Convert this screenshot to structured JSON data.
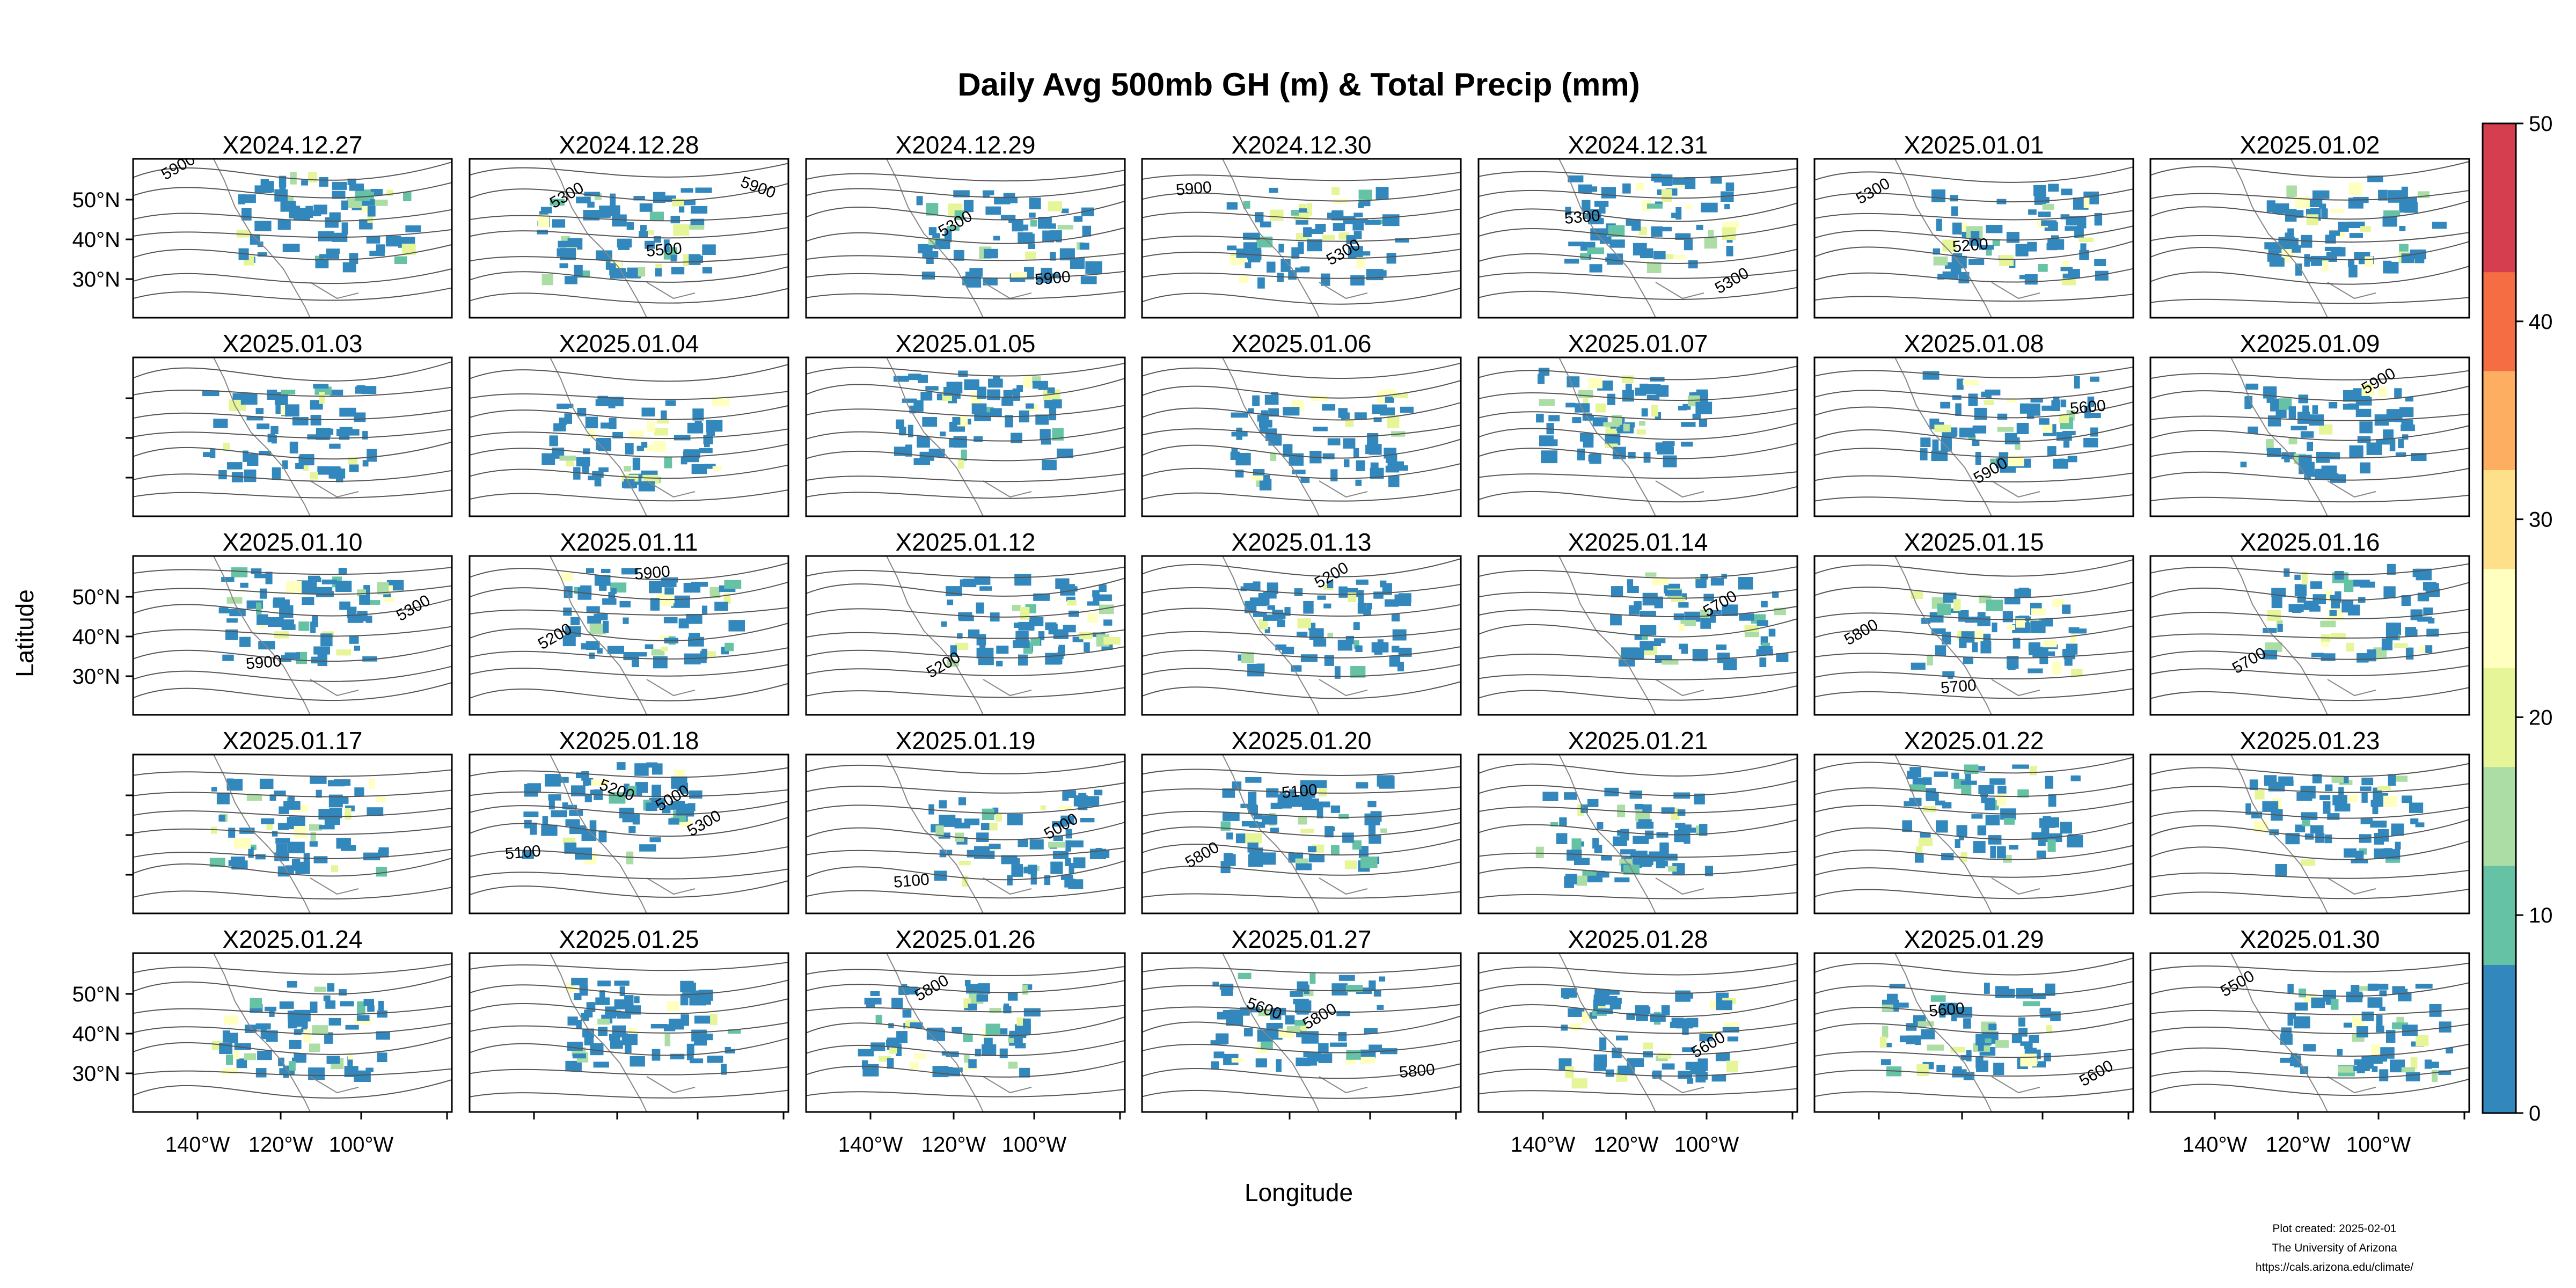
{
  "title": "Daily Avg 500mb GH (m) & Total Precip (mm)",
  "xlabel": "Longitude",
  "ylabel": "Latitude",
  "lat_ticks": [
    "50°N",
    "40°N",
    "30°N"
  ],
  "lon_ticks": [
    "140°W",
    "120°W",
    "100°W"
  ],
  "colorbar": {
    "ticks": [
      "0",
      "10",
      "20",
      "30",
      "40",
      "50"
    ],
    "min": 0,
    "max": 50,
    "steps": 20,
    "colors": [
      "#3288bd",
      "#66c2a5",
      "#abdda4",
      "#e6f598",
      "#ffffbf",
      "#fee08b",
      "#fdae61",
      "#f46d43",
      "#d53e4f"
    ]
  },
  "panels": [
    {
      "date": "X2024.12.27",
      "labels": [
        "5900"
      ]
    },
    {
      "date": "X2024.12.28",
      "labels": [
        "5300",
        "5500",
        "5900"
      ]
    },
    {
      "date": "X2024.12.29",
      "labels": [
        "5300",
        "5900"
      ]
    },
    {
      "date": "X2024.12.30",
      "labels": [
        "5300",
        "5900"
      ]
    },
    {
      "date": "X2024.12.31",
      "labels": [
        "5300",
        "5300"
      ]
    },
    {
      "date": "X2025.01.01",
      "labels": [
        "5300",
        "5200"
      ]
    },
    {
      "date": "X2025.01.02",
      "labels": []
    },
    {
      "date": "X2025.01.03",
      "labels": []
    },
    {
      "date": "X2025.01.04",
      "labels": []
    },
    {
      "date": "X2025.01.05",
      "labels": []
    },
    {
      "date": "X2025.01.06",
      "labels": []
    },
    {
      "date": "X2025.01.07",
      "labels": []
    },
    {
      "date": "X2025.01.08",
      "labels": [
        "5900",
        "5600"
      ]
    },
    {
      "date": "X2025.01.09",
      "labels": [
        "5900"
      ]
    },
    {
      "date": "X2025.01.10",
      "labels": [
        "5300",
        "5900"
      ]
    },
    {
      "date": "X2025.01.11",
      "labels": [
        "5200",
        "5900"
      ]
    },
    {
      "date": "X2025.01.12",
      "labels": [
        "5200"
      ]
    },
    {
      "date": "X2025.01.13",
      "labels": [
        "5200"
      ]
    },
    {
      "date": "X2025.01.14",
      "labels": [
        "5700"
      ]
    },
    {
      "date": "X2025.01.15",
      "labels": [
        "5800",
        "5700"
      ]
    },
    {
      "date": "X2025.01.16",
      "labels": [
        "5700"
      ]
    },
    {
      "date": "X2025.01.17",
      "labels": []
    },
    {
      "date": "X2025.01.18",
      "labels": [
        "5000",
        "5100",
        "5200",
        "5300"
      ]
    },
    {
      "date": "X2025.01.19",
      "labels": [
        "5000",
        "5100"
      ]
    },
    {
      "date": "X2025.01.20",
      "labels": [
        "5800",
        "5100"
      ]
    },
    {
      "date": "X2025.01.21",
      "labels": []
    },
    {
      "date": "X2025.01.22",
      "labels": []
    },
    {
      "date": "X2025.01.23",
      "labels": []
    },
    {
      "date": "X2025.01.24",
      "labels": []
    },
    {
      "date": "X2025.01.25",
      "labels": []
    },
    {
      "date": "X2025.01.26",
      "labels": [
        "5800"
      ]
    },
    {
      "date": "X2025.01.27",
      "labels": [
        "5800",
        "5800",
        "5600"
      ]
    },
    {
      "date": "X2025.01.28",
      "labels": [
        "5600"
      ]
    },
    {
      "date": "X2025.01.29",
      "labels": [
        "5600",
        "5600"
      ]
    },
    {
      "date": "X2025.01.30",
      "labels": [
        "5500"
      ]
    }
  ],
  "footer": {
    "line1": "Plot created: 2025-02-01",
    "line2": "The University of Arizona",
    "line3": "https://cals.arizona.edu/climate/"
  }
}
